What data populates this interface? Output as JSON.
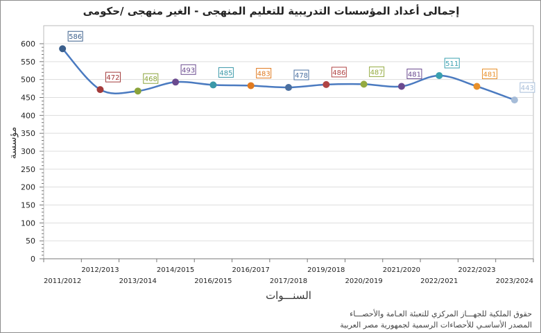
{
  "chart_data": {
    "type": "line",
    "title": "إجمالى أعداد المؤسسات التدريبية للتعليم المنهجى - الغير منهجى /حكومى",
    "xlabel": "السنـــوات",
    "ylabel": "مؤسسة",
    "ylim": [
      0,
      600
    ],
    "yticks": [
      0,
      50,
      100,
      150,
      200,
      250,
      300,
      350,
      400,
      450,
      500,
      550,
      600
    ],
    "grid": true,
    "categories": [
      "2011/2012",
      "2012/2013",
      "2013/2014",
      "2014/2015",
      "2016/2015",
      "2016/2017",
      "2017/2018",
      "2019/2018",
      "2020/2019",
      "2021/2020",
      "2022/2021",
      "2022/2023",
      "2023/2024"
    ],
    "values": [
      586,
      472,
      468,
      493,
      485,
      483,
      478,
      486,
      487,
      481,
      511,
      481,
      443
    ],
    "point_colors": [
      "#3b5f8c",
      "#a33a3a",
      "#8aa33a",
      "#6a4a8f",
      "#3a98a8",
      "#e07a20",
      "#4a6fa0",
      "#b04444",
      "#94aa40",
      "#6a4a8f",
      "#3aa0b0",
      "#e8902a",
      "#a6bcd8"
    ],
    "line_color": "#4a7ac0"
  },
  "credits": {
    "line1": "حقوق الملكية للجهـــاز المركزي للتعبئة العـامة والأحصـــاء",
    "line2": "المصدر الأساسـي للأحصاءات الرسمية لجمهورية مصر العربية"
  }
}
